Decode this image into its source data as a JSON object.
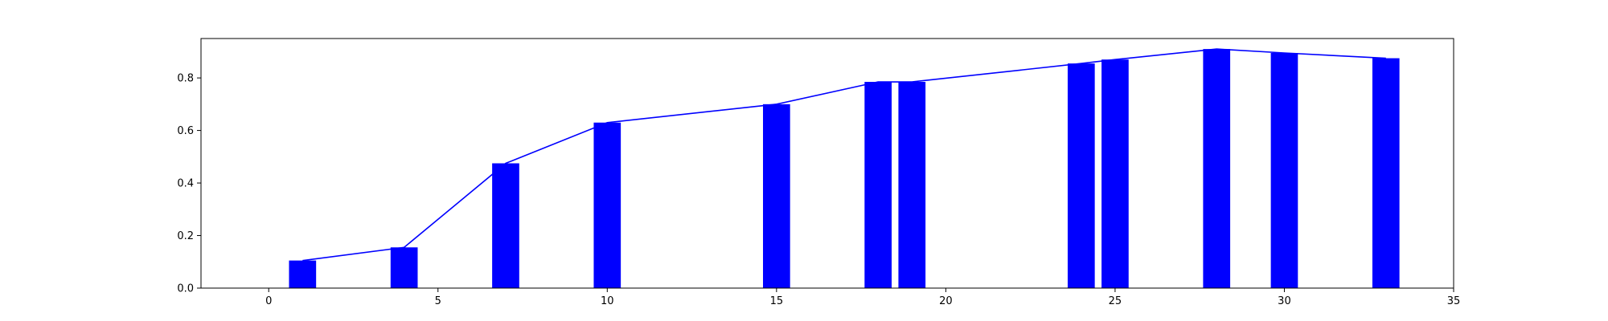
{
  "chart_data": {
    "type": "bar",
    "title": "",
    "xlabel": "",
    "ylabel": "",
    "xlim": [
      -2,
      35
    ],
    "ylim": [
      0,
      0.95
    ],
    "grid": false,
    "bar_width": 0.8,
    "x_ticks": [
      0,
      5,
      10,
      15,
      20,
      25,
      30,
      35
    ],
    "x_tick_labels": [
      "0",
      "5",
      "10",
      "15",
      "20",
      "25",
      "30",
      "35"
    ],
    "y_ticks": [
      0.0,
      0.2,
      0.4,
      0.6,
      0.8
    ],
    "y_tick_labels": [
      "0.0",
      "0.2",
      "0.4",
      "0.6",
      "0.8"
    ],
    "series": [
      {
        "type": "bar",
        "color": "#0000ff",
        "x": [
          1,
          4,
          7,
          10,
          15,
          18,
          19,
          24,
          25,
          28,
          30,
          33
        ],
        "values": [
          0.105,
          0.155,
          0.475,
          0.63,
          0.7,
          0.785,
          0.785,
          0.855,
          0.87,
          0.91,
          0.895,
          0.875
        ]
      },
      {
        "type": "line",
        "color": "#0000ff",
        "x": [
          1,
          4,
          7,
          10,
          15,
          18,
          19,
          24,
          25,
          28,
          30,
          33
        ],
        "values": [
          0.105,
          0.155,
          0.475,
          0.63,
          0.7,
          0.785,
          0.785,
          0.855,
          0.87,
          0.91,
          0.895,
          0.875
        ]
      }
    ]
  }
}
